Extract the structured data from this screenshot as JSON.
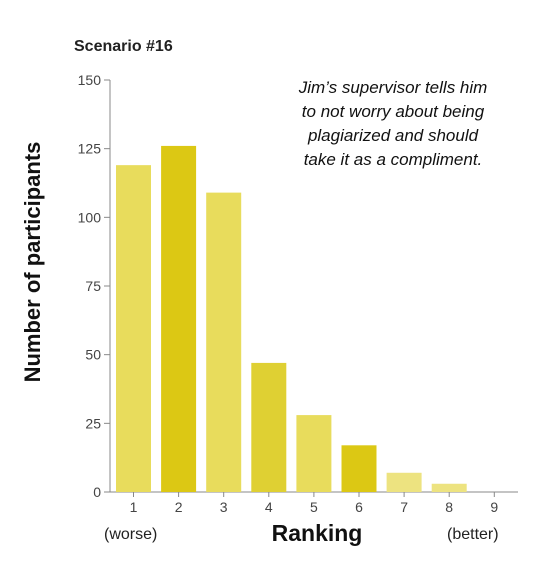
{
  "chart_data": {
    "type": "bar",
    "title": "Scenario #16",
    "annotation": "Jim’s supervisor tells him\nto not worry about being\nplagiarized and should\ntake it as a compliment.",
    "xlabel": "Ranking",
    "ylabel": "Number of participants",
    "x_left_label": "(worse)",
    "x_right_label": "(better)",
    "categories": [
      "1",
      "2",
      "3",
      "4",
      "5",
      "6",
      "7",
      "8",
      "9"
    ],
    "values": [
      119,
      126,
      109,
      47,
      28,
      17,
      7,
      3,
      0
    ],
    "colors": [
      "#e8dc5c",
      "#dcc814",
      "#e8dc5c",
      "#dfd033",
      "#e8dc5c",
      "#dcc814",
      "#ede380",
      "#ede380",
      "#ede380"
    ],
    "yticks": [
      "0",
      "25",
      "50",
      "75",
      "100",
      "125",
      "150"
    ],
    "ylim": [
      0,
      150
    ],
    "grid": false
  }
}
